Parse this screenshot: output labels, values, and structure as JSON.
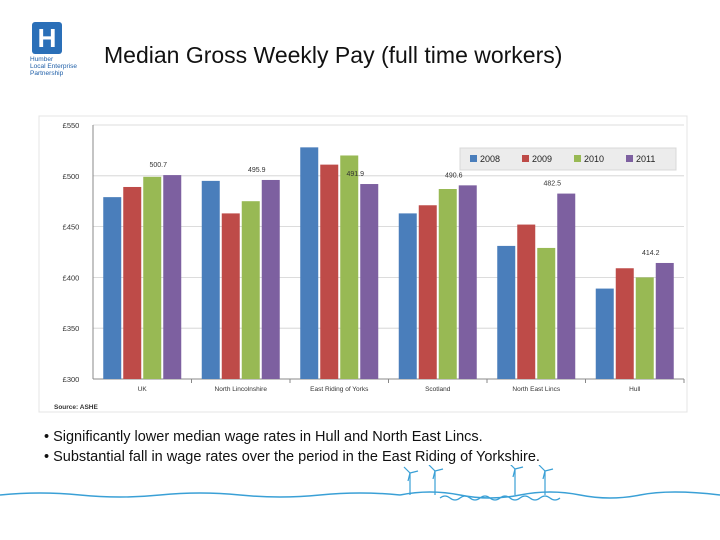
{
  "logo": {
    "letter": "H",
    "lines": [
      "Humber",
      "Local Enterprise",
      "Partnership"
    ]
  },
  "title": "Median Gross Weekly Pay (full time workers)",
  "source": "Source: ASHE",
  "bullets": [
    "• Significantly lower median wage rates in Hull and North East Lincs.",
    "• Substantial fall in wage rates over the period in the East Riding of Yorkshire."
  ],
  "chart_data": {
    "type": "bar",
    "categories": [
      "UK",
      "North Lincolnshire",
      "East Riding of Yorks",
      "Scotland",
      "North East Lincs",
      "Hull"
    ],
    "series": [
      {
        "name": "2008",
        "color": "#4a7ebb",
        "values": [
          479,
          495,
          528,
          463,
          431,
          389
        ]
      },
      {
        "name": "2009",
        "color": "#be4b48",
        "values": [
          489,
          463,
          511,
          471,
          452,
          409
        ]
      },
      {
        "name": "2010",
        "color": "#98b954",
        "values": [
          499,
          475,
          520,
          487,
          429,
          400
        ]
      },
      {
        "name": "2011",
        "color": "#7d60a0",
        "values": [
          500.7,
          495.9,
          491.9,
          490.6,
          482.5,
          414.2
        ]
      }
    ],
    "data_labels": [
      {
        "category": "UK",
        "text": "500.7"
      },
      {
        "category": "North Lincolnshire",
        "text": "495.9"
      },
      {
        "category": "East Riding of Yorks",
        "text": "491.9"
      },
      {
        "category": "Scotland",
        "text": "490.6"
      },
      {
        "category": "North East Lincs",
        "text": "482.5"
      },
      {
        "category": "Hull",
        "text": "414.2"
      }
    ],
    "ylim": [
      300,
      550
    ],
    "yticks": [
      300,
      350,
      400,
      450,
      500,
      550
    ],
    "ytick_labels": [
      "£300",
      "£350",
      "£400",
      "£450",
      "£500",
      "£550"
    ],
    "grid": true,
    "legend_position": "top-right"
  }
}
